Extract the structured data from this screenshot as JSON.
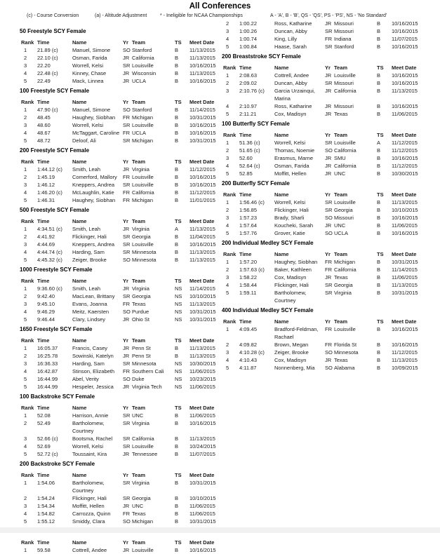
{
  "title": "All Conferences",
  "legend": {
    "course_conversion": "(c) - Course Conversion",
    "altitude_adjustment": "(a) - Altitude Adjustment",
    "ineligible": "* - Ineligible for NCAA Championships",
    "standards": "A - 'A',  B - 'B',  QS - 'QS',  PS - 'PS',  NS - 'No Standard'"
  },
  "table_headers": [
    "Rank",
    "Time",
    "Name",
    "Yr",
    "Team",
    "TS",
    "Meet Date"
  ],
  "columns": {
    "left": [
      {
        "title": "50 Freestyle SCY Female",
        "show_header": true,
        "rows": [
          [
            "1",
            "21.89 (c)",
            "Manuel, Simone",
            "SO",
            "Stanford",
            "B",
            "11/13/2015"
          ],
          [
            "2",
            "22.10 (c)",
            "Osman, Farida",
            "JR",
            "California",
            "B",
            "11/13/2015"
          ],
          [
            "3",
            "22.20",
            "Worrell, Kelsi",
            "SR",
            "Louisville",
            "B",
            "10/16/2015"
          ],
          [
            "4",
            "22.48 (c)",
            "Kinney, Chase",
            "JR",
            "Wisconsin",
            "B",
            "11/13/2015"
          ],
          [
            "5",
            "22.49",
            "Mack, Linnea",
            "JR",
            "UCLA",
            "B",
            "10/16/2015"
          ]
        ]
      },
      {
        "title": "100 Freestyle SCY Female",
        "show_header": true,
        "rows": [
          [
            "1",
            "47.90 (c)",
            "Manuel, Simone",
            "SO",
            "Stanford",
            "B",
            "11/14/2015"
          ],
          [
            "2",
            "48.45",
            "Haughey, Siobhan",
            "FR",
            "Michigan",
            "B",
            "10/31/2015"
          ],
          [
            "3",
            "48.60",
            "Worrell, Kelsi",
            "SR",
            "Louisville",
            "B",
            "10/16/2015"
          ],
          [
            "4",
            "48.67",
            "McTaggart, Caroline",
            "FR",
            "UCLA",
            "B",
            "10/16/2015"
          ],
          [
            "5",
            "48.72",
            "Deloof, Ali",
            "SR",
            "Michigan",
            "B",
            "10/31/2015"
          ]
        ]
      },
      {
        "title": "200 Freestyle SCY Female",
        "show_header": true,
        "rows": [
          [
            "1",
            "1:44.12 (c)",
            "Smith, Leah",
            "JR",
            "Virginia",
            "B",
            "11/12/2015"
          ],
          [
            "2",
            "1:45.19",
            "Comerford, Mallory",
            "FR",
            "Louisville",
            "B",
            "10/16/2015"
          ],
          [
            "3",
            "1:46.12",
            "Kneppers, Andrea",
            "SR",
            "Louisville",
            "B",
            "10/16/2015"
          ],
          [
            "4",
            "1:46.20 (c)",
            "McLaughlin, Katie",
            "FR",
            "California",
            "B",
            "11/12/2015"
          ],
          [
            "5",
            "1:46.31",
            "Haughey, Siobhan",
            "FR",
            "Michigan",
            "B",
            "11/01/2015"
          ]
        ]
      },
      {
        "title": "500 Freestyle SCY Female",
        "show_header": true,
        "rows": [
          [
            "1",
            "4:34.51 (c)",
            "Smith, Leah",
            "JR",
            "Virginia",
            "A",
            "11/13/2015"
          ],
          [
            "2",
            "4:41.92",
            "Flickinger, Hali",
            "SR",
            "Georgia",
            "B",
            "11/04/2015"
          ],
          [
            "3",
            "4:44.69",
            "Kneppers, Andrea",
            "SR",
            "Louisville",
            "B",
            "10/16/2015"
          ],
          [
            "4",
            "4:44.74 (c)",
            "Harding, Sam",
            "SR",
            "Minnesota",
            "B",
            "11/13/2015"
          ],
          [
            "5",
            "4:45.32 (c)",
            "Zeiger, Brooke",
            "SO",
            "Minnesota",
            "B",
            "11/13/2015"
          ]
        ]
      },
      {
        "title": "1000 Freestyle SCY Female",
        "show_header": true,
        "rows": [
          [
            "1",
            "9:36.60 (c)",
            "Smith, Leah",
            "JR",
            "Virginia",
            "NS",
            "11/14/2015"
          ],
          [
            "2",
            "9:42.40",
            "MacLean, Brittany",
            "SR",
            "Georgia",
            "NS",
            "10/10/2015"
          ],
          [
            "3",
            "9:45.10",
            "Evans, Joanna",
            "FR",
            "Texas",
            "NS",
            "11/13/2015"
          ],
          [
            "4",
            "9:46.29",
            "Meitz, Kaersten",
            "SO",
            "Purdue",
            "NS",
            "10/31/2015"
          ],
          [
            "5",
            "9:46.44",
            "Clary, Lindsey",
            "JR",
            "Ohio St",
            "NS",
            "10/31/2015"
          ]
        ]
      },
      {
        "title": "1650 Freestyle SCY Female",
        "show_header": true,
        "rows": [
          [
            "1",
            "16:05.37",
            "Francis, Casey",
            "JR",
            "Penn St",
            "B",
            "11/13/2015"
          ],
          [
            "2",
            "16:25.78",
            "Sowinski, Katelyn",
            "JR",
            "Penn St",
            "B",
            "11/13/2015"
          ],
          [
            "3",
            "16:36.33",
            "Harding, Sam",
            "SR",
            "Minnesota",
            "NS",
            "10/30/2015"
          ],
          [
            "4",
            "16:42.87",
            "Stinson, Elizabeth",
            "FR",
            "Southern Cali",
            "NS",
            "11/06/2015"
          ],
          [
            "5",
            "16:44.99",
            "Abel, Verity",
            "SO",
            "Duke",
            "NS",
            "10/23/2015"
          ],
          [
            "5",
            "16:44.99",
            "Hespeler, Jessica",
            "JR",
            "Virginia Tech",
            "NS",
            "11/06/2015"
          ]
        ]
      },
      {
        "title": "100 Backstroke SCY Female",
        "show_header": true,
        "rows": [
          [
            "1",
            "52.08",
            "Harrison, Annie",
            "SR",
            "UNC",
            "B",
            "11/06/2015"
          ],
          [
            "2",
            "52.49",
            "Bartholomew, Courtney",
            "SR",
            "Virginia",
            "B",
            "10/16/2015"
          ],
          [
            "3",
            "52.66 (c)",
            "Bootsma, Rachel",
            "SR",
            "California",
            "B",
            "11/13/2015"
          ],
          [
            "4",
            "52.69",
            "Worrell, Kelsi",
            "SR",
            "Louisville",
            "B",
            "10/24/2015"
          ],
          [
            "5",
            "52.72 (c)",
            "Toussaint, Kira",
            "JR",
            "Tennessee",
            "B",
            "11/07/2015"
          ]
        ]
      },
      {
        "title": "200 Backstroke SCY Female",
        "show_header": true,
        "rows": [
          [
            "1",
            "1:54.06",
            "Bartholomew, Courtney",
            "SR",
            "Virginia",
            "B",
            "10/31/2015"
          ],
          [
            "2",
            "1:54.24",
            "Flickinger, Hali",
            "SR",
            "Georgia",
            "B",
            "10/10/2015"
          ],
          [
            "3",
            "1:54.34",
            "Moffitt, Hellen",
            "JR",
            "UNC",
            "B",
            "11/06/2015"
          ],
          [
            "4",
            "1:54.82",
            "Carrozza, Quinn",
            "FR",
            "Texas",
            "B",
            "11/06/2015"
          ],
          [
            "5",
            "1:55.12",
            "Smiddy, Clara",
            "SO",
            "Michigan",
            "B",
            "10/31/2015"
          ]
        ]
      },
      {
        "title": "100 Breaststroke SCY Female",
        "show_header": true,
        "rows": [
          [
            "1",
            "59.58",
            "Cottrell, Andee",
            "JR",
            "Louisville",
            "B",
            "10/16/2015"
          ]
        ]
      }
    ],
    "right": [
      {
        "title": "",
        "show_header": false,
        "rows": [
          [
            "2",
            "1:00.22",
            "Ross, Katharine",
            "JR",
            "Missouri",
            "B",
            "10/16/2015"
          ],
          [
            "3",
            "1:00.26",
            "Duncan, Abby",
            "SR",
            "Missouri",
            "B",
            "10/16/2015"
          ],
          [
            "4",
            "1:00.74",
            "King, Lilly",
            "FR",
            "Indiana",
            "B",
            "11/07/2015"
          ],
          [
            "5",
            "1:00.84",
            "Haase, Sarah",
            "SR",
            "Stanford",
            "B",
            "10/16/2015"
          ]
        ]
      },
      {
        "title": "200 Breaststroke SCY Female",
        "show_header": true,
        "rows": [
          [
            "1",
            "2:08.63",
            "Cottrell, Andee",
            "JR",
            "Louisville",
            "B",
            "10/16/2015"
          ],
          [
            "2",
            "2:09.02",
            "Duncan, Abby",
            "SR",
            "Missouri",
            "B",
            "10/16/2015"
          ],
          [
            "3",
            "2:10.76 (c)",
            "Garcia Urzainqui, Marina",
            "JR",
            "California",
            "B",
            "11/13/2015"
          ],
          [
            "4",
            "2:10.97",
            "Ross, Katharine",
            "JR",
            "Missouri",
            "B",
            "10/16/2015"
          ],
          [
            "5",
            "2:11.21",
            "Cox, Madisyn",
            "JR",
            "Texas",
            "B",
            "11/06/2015"
          ]
        ]
      },
      {
        "title": "100 Butterfly SCY Female",
        "show_header": true,
        "rows": [
          [
            "1",
            "51.36 (c)",
            "Worrell, Kelsi",
            "SR",
            "Louisville",
            "A",
            "11/12/2015"
          ],
          [
            "2",
            "51.65 (c)",
            "Thomas, Noemie",
            "SO",
            "California",
            "B",
            "11/12/2015"
          ],
          [
            "3",
            "52.60",
            "Erasmus, Marne",
            "JR",
            "SMU",
            "B",
            "10/16/2015"
          ],
          [
            "4",
            "52.64 (c)",
            "Osman, Farida",
            "JR",
            "California",
            "B",
            "11/12/2015"
          ],
          [
            "5",
            "52.85",
            "Moffitt, Hellen",
            "JR",
            "UNC",
            "B",
            "10/30/2015"
          ]
        ]
      },
      {
        "title": "200 Butterfly SCY Female",
        "show_header": true,
        "rows": [
          [
            "1",
            "1:56.46 (c)",
            "Worrell, Kelsi",
            "SR",
            "Louisville",
            "B",
            "11/13/2015"
          ],
          [
            "2",
            "1:56.85",
            "Flickinger, Hali",
            "SR",
            "Georgia",
            "B",
            "10/10/2015"
          ],
          [
            "3",
            "1:57.23",
            "Brady, Sharli",
            "SO",
            "Missouri",
            "B",
            "10/16/2015"
          ],
          [
            "4",
            "1:57.64",
            "Koucheki, Sarah",
            "JR",
            "UNC",
            "B",
            "11/06/2015"
          ],
          [
            "5",
            "1:57.76",
            "Grover, Katie",
            "SO",
            "UCLA",
            "B",
            "10/16/2015"
          ]
        ]
      },
      {
        "title": "200 Individual Medley SCY Female",
        "show_header": true,
        "rows": [
          [
            "1",
            "1:57.20",
            "Haughey, Siobhan",
            "FR",
            "Michigan",
            "B",
            "10/31/2015"
          ],
          [
            "2",
            "1:57.63 (c)",
            "Baker, Kathleen",
            "FR",
            "California",
            "B",
            "11/14/2015"
          ],
          [
            "3",
            "1:58.22",
            "Cox, Madisyn",
            "JR",
            "Texas",
            "B",
            "11/06/2015"
          ],
          [
            "4",
            "1:58.44",
            "Flickinger, Hali",
            "SR",
            "Georgia",
            "B",
            "11/13/2015"
          ],
          [
            "5",
            "1:59.11",
            "Bartholomew, Courtney",
            "SR",
            "Virginia",
            "B",
            "10/31/2015"
          ]
        ]
      },
      {
        "title": "400 Individual Medley SCY Female",
        "show_header": true,
        "rows": [
          [
            "1",
            "4:09.45",
            "Bradford-Feldman, Rachael",
            "FR",
            "Louisville",
            "B",
            "10/16/2015"
          ],
          [
            "2",
            "4:09.82",
            "Brown, Megan",
            "FR",
            "Florida St",
            "B",
            "10/16/2015"
          ],
          [
            "3",
            "4:10.28 (c)",
            "Zeiger, Brooke",
            "SO",
            "Minnesota",
            "B",
            "11/12/2015"
          ],
          [
            "4",
            "4:10.43",
            "Cox, Madisyn",
            "JR",
            "Texas",
            "B",
            "11/13/2015"
          ],
          [
            "5",
            "4:11.87",
            "Nonnenberg, Mia",
            "SO",
            "Alabama",
            "B",
            "10/09/2015"
          ]
        ]
      }
    ]
  }
}
